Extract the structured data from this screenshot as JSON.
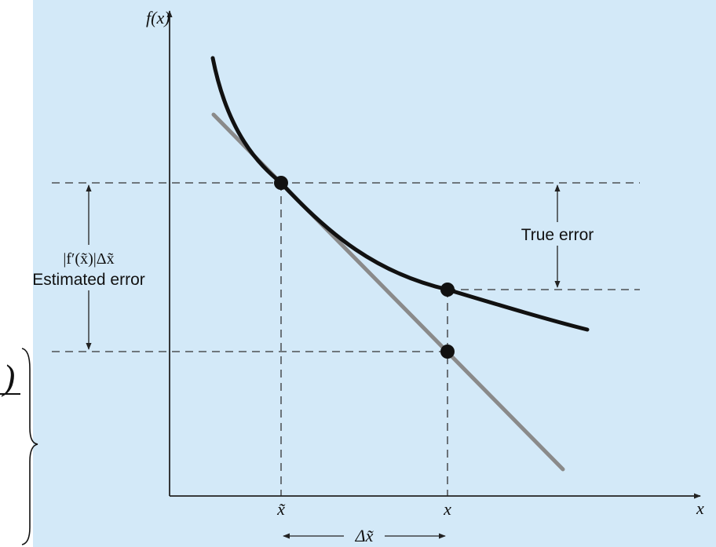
{
  "colors": {
    "panel_background": "#d3e9f8",
    "curve": "#111111",
    "tangent": "#8a8a8a",
    "dashed": "#333333",
    "axes": "#222222"
  },
  "labels": {
    "y_axis": "f(x)",
    "x_axis": "x",
    "x_tilde": "x̃",
    "x_point": "x",
    "delta_x": "Δx̃",
    "true_error": "True error",
    "estimated_error_formula": "|f′(x̃)|Δx̃",
    "estimated_error": "Estimated error",
    "left_fragment": ")"
  },
  "icons": {
    "points": "filled-circle",
    "arrows": "arrowhead"
  }
}
